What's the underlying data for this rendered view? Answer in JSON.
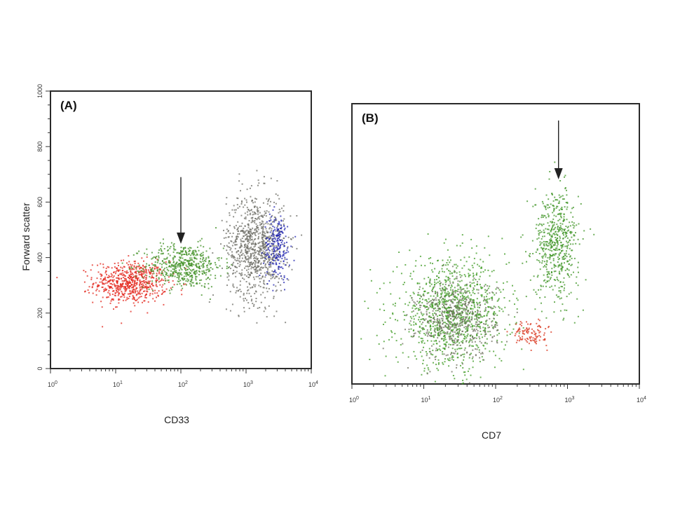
{
  "chart_data": [
    {
      "type": "scatter",
      "panel_label": "(A)",
      "xlabel": "CD33",
      "ylabel": "Forward scatter",
      "xscale": "log",
      "xlim": [
        1,
        10000
      ],
      "ylim": [
        0,
        1000
      ],
      "x_ticks": [
        {
          "base": "10",
          "exp": "0"
        },
        {
          "base": "10",
          "exp": "1"
        },
        {
          "base": "10",
          "exp": "2"
        },
        {
          "base": "10",
          "exp": "3"
        },
        {
          "base": "10",
          "exp": "4"
        }
      ],
      "y_ticks": [
        "0",
        "200",
        "400",
        "600",
        "800",
        "1000"
      ],
      "arrow_at": {
        "x": 100,
        "y_from": 690,
        "y_to": 460
      },
      "series": [
        {
          "color": "#e3261b",
          "center": [
            17,
            310
          ],
          "spread": [
            0.28,
            38
          ],
          "count": 650
        },
        {
          "color": "#3f8f23",
          "center": [
            110,
            370
          ],
          "spread": [
            0.3,
            40
          ],
          "count": 520
        },
        {
          "color": "#6e6e66",
          "center": [
            1400,
            440
          ],
          "spread": [
            0.22,
            95
          ],
          "count": 900
        },
        {
          "color": "#2024b0",
          "center": [
            3000,
            440
          ],
          "spread": [
            0.1,
            60
          ],
          "count": 220
        }
      ]
    },
    {
      "type": "scatter",
      "panel_label": "(B)",
      "xlabel": "CD7",
      "ylabel": "",
      "xscale": "log",
      "xlim": [
        1,
        10000
      ],
      "ylim": [
        0,
        1000
      ],
      "x_ticks": [
        {
          "base": "10",
          "exp": "0"
        },
        {
          "base": "10",
          "exp": "1"
        },
        {
          "base": "10",
          "exp": "2"
        },
        {
          "base": "10",
          "exp": "3"
        },
        {
          "base": "10",
          "exp": "4"
        }
      ],
      "y_ticks": [],
      "arrow_at": {
        "x": 750,
        "y_from": 940,
        "y_to": 740
      },
      "series": [
        {
          "color": "#3d9a22",
          "center": [
            25,
            250
          ],
          "spread": [
            0.38,
            95
          ],
          "count": 1100
        },
        {
          "color": "#6f705f",
          "center": [
            28,
            230
          ],
          "spread": [
            0.28,
            70
          ],
          "count": 500
        },
        {
          "color": "#3f9425",
          "center": [
            700,
            500
          ],
          "spread": [
            0.16,
            95
          ],
          "count": 550
        },
        {
          "color": "#d93a22",
          "center": [
            300,
            180
          ],
          "spread": [
            0.12,
            22
          ],
          "count": 110
        }
      ]
    }
  ]
}
